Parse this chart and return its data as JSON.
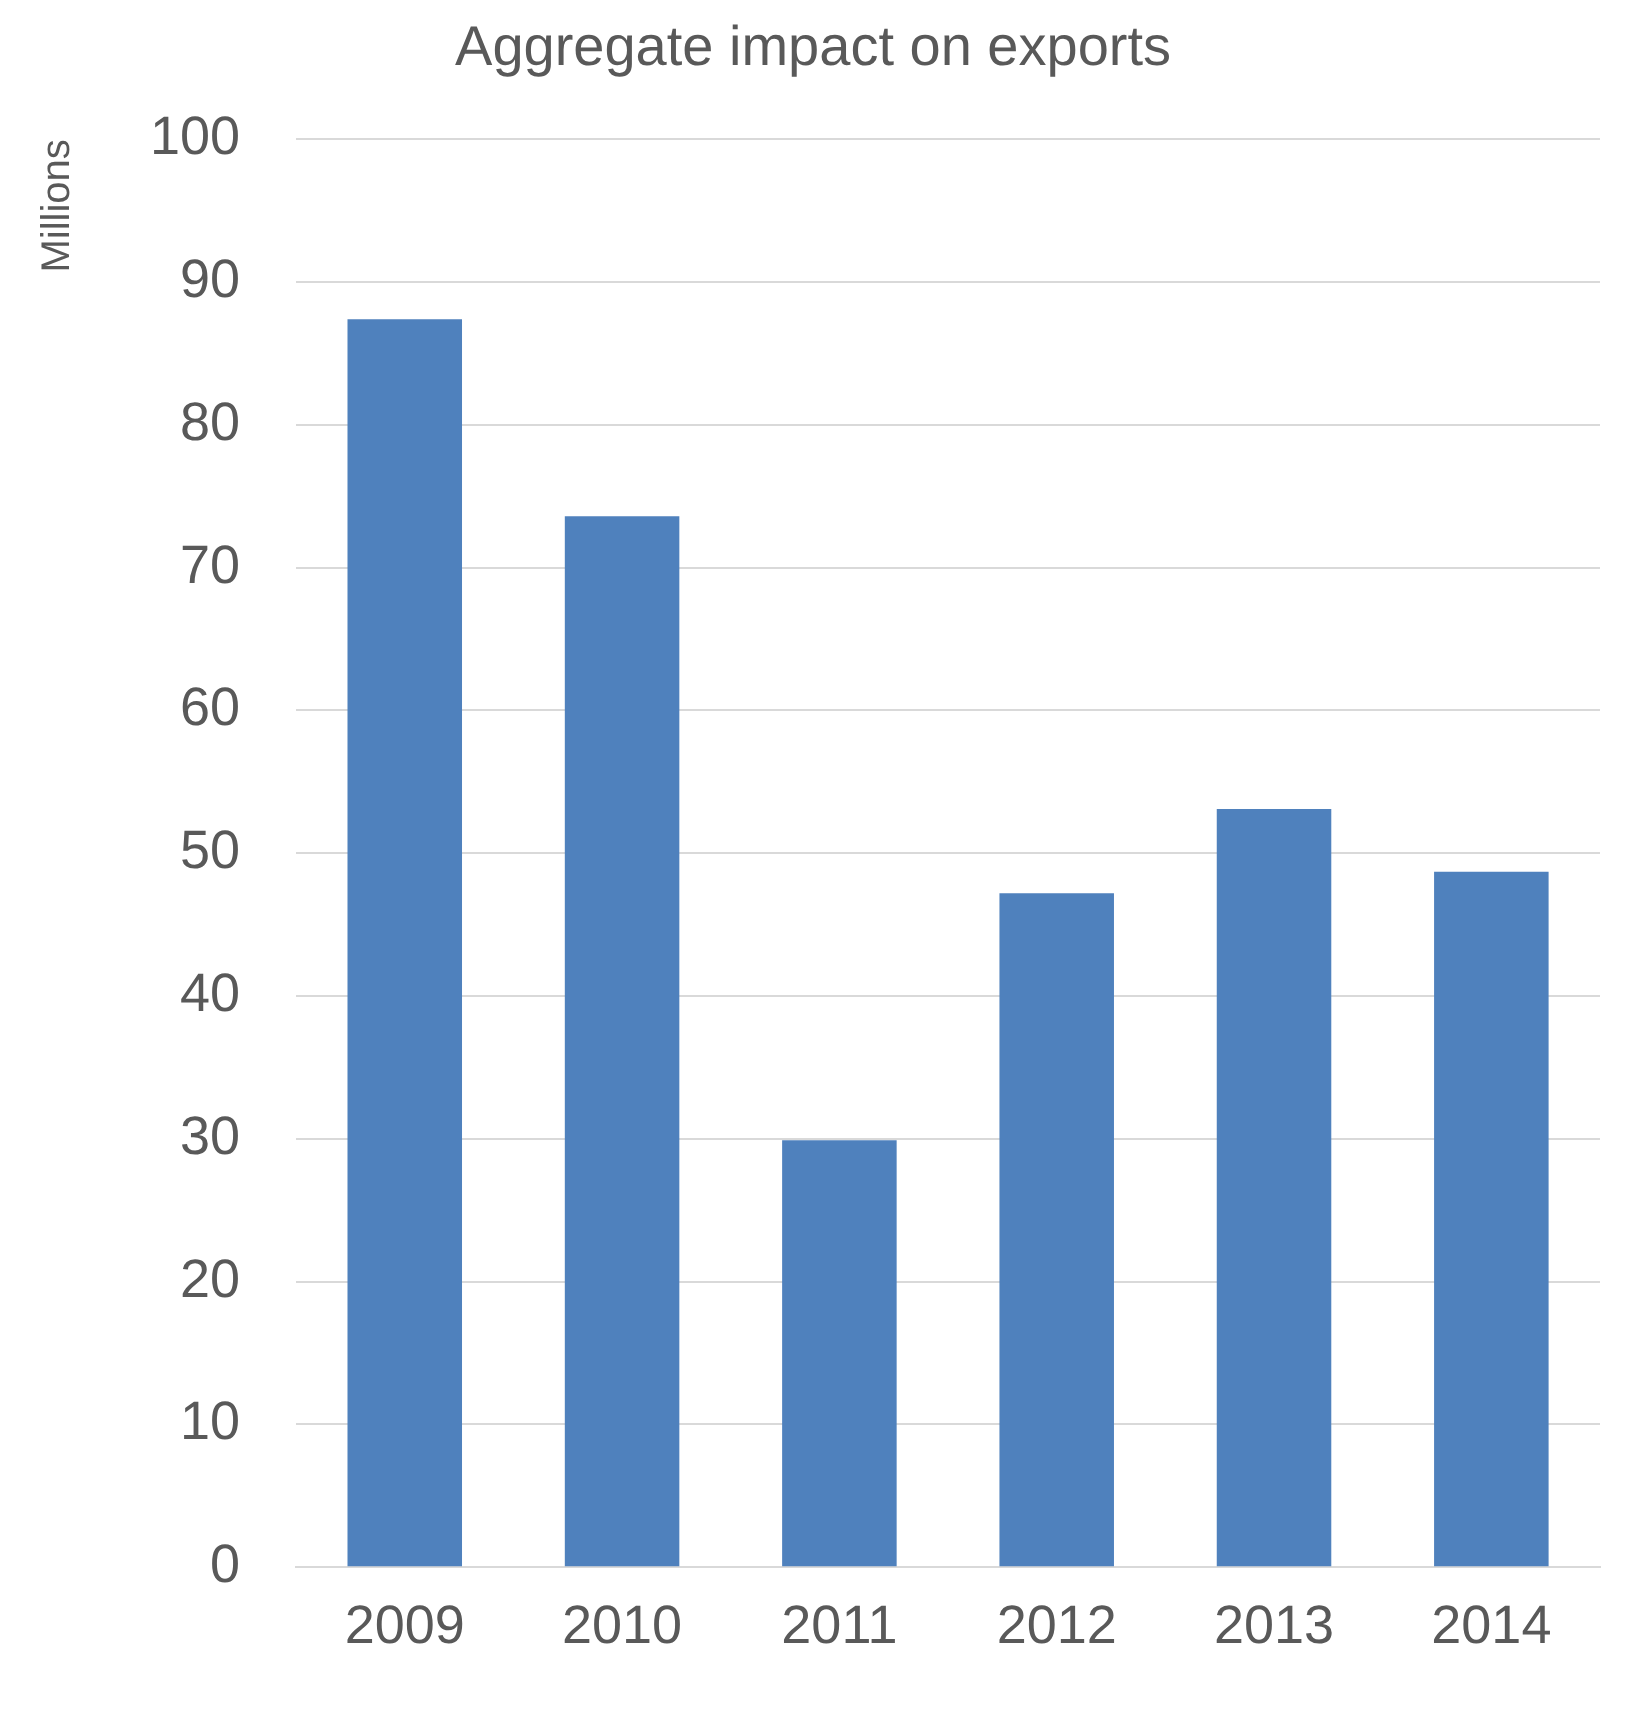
{
  "chart_data": {
    "type": "bar",
    "title": "Aggregate impact on exports",
    "ylabel": "Millions",
    "categories": [
      "2009",
      "2010",
      "2011",
      "2012",
      "2013",
      "2014"
    ],
    "values": [
      87.4,
      73.6,
      29.9,
      47.2,
      53.1,
      48.7
    ],
    "color": "#4f81bd",
    "ylim": [
      0,
      100
    ],
    "yticks": [
      0,
      10,
      20,
      30,
      40,
      50,
      60,
      70,
      80,
      90,
      100
    ],
    "grid": "y",
    "legend": false
  }
}
